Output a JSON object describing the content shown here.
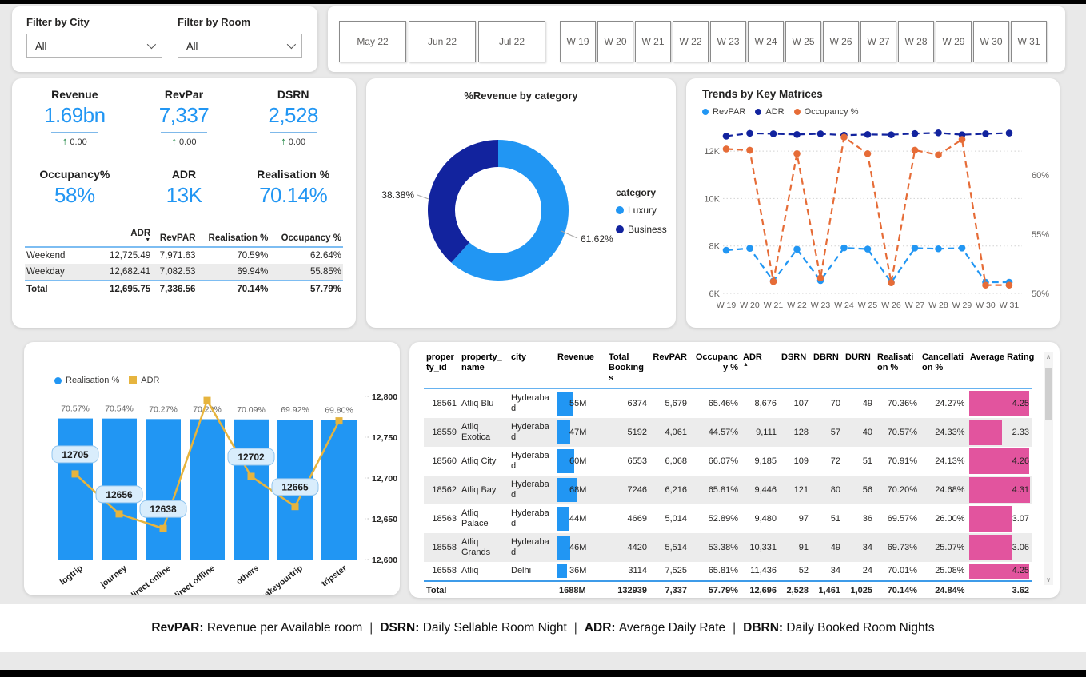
{
  "colors": {
    "blue": "#2196F3",
    "navy": "#12239E",
    "orange": "#E66C37",
    "gold": "#E6B43E",
    "pink": "#E2549E",
    "green": "#17823D"
  },
  "filters": {
    "city": {
      "label": "Filter by City",
      "value": "All"
    },
    "room": {
      "label": "Filter by Room",
      "value": "All"
    }
  },
  "slicers": {
    "months": [
      "May 22",
      "Jun 22",
      "Jul 22"
    ],
    "weeks": [
      "W 19",
      "W 20",
      "W 21",
      "W 22",
      "W 23",
      "W 24",
      "W 25",
      "W 26",
      "W 27",
      "W 28",
      "W 29",
      "W 30",
      "W 31"
    ]
  },
  "kpis": [
    {
      "label": "Revenue",
      "value": "1.69bn",
      "delta": "0.00"
    },
    {
      "label": "RevPar",
      "value": "7,337",
      "delta": "0.00"
    },
    {
      "label": "DSRN",
      "value": "2,528",
      "delta": "0.00"
    },
    {
      "label": "Occupancy%",
      "value": "58%"
    },
    {
      "label": "ADR",
      "value": "13K"
    },
    {
      "label": "Realisation %",
      "value": "70.14%"
    }
  ],
  "kpi_breakdown_table": {
    "columns": [
      "",
      "ADR",
      "RevPAR",
      "Realisation %",
      "Occupancy %"
    ],
    "sort": {
      "column": "ADR",
      "direction": "desc"
    },
    "rows": [
      [
        "Weekend",
        "12,725.49",
        "7,971.63",
        "70.59%",
        "62.64%"
      ],
      [
        "Weekday",
        "12,682.41",
        "7,082.53",
        "69.94%",
        "55.85%"
      ]
    ],
    "total": [
      "Total",
      "12,695.75",
      "7,336.56",
      "70.14%",
      "57.79%"
    ]
  },
  "chart_data": [
    {
      "id": "revenue_by_category",
      "type": "pie",
      "title": "%Revenue by category",
      "legend_title": "category",
      "legend_position": "right",
      "labels": [
        "Luxury",
        "Business"
      ],
      "values": [
        61.62,
        38.38
      ],
      "value_labels": [
        "61.62%",
        "38.38%"
      ],
      "colors": [
        "#2196F3",
        "#12239E"
      ],
      "donut": true
    },
    {
      "id": "trends_by_key_matrices",
      "type": "line",
      "title": "Trends by Key Matrices",
      "line_style": "dashed",
      "grid": true,
      "legend_position": "top",
      "categories": [
        "W 19",
        "W 20",
        "W 21",
        "W 22",
        "W 23",
        "W 24",
        "W 25",
        "W 26",
        "W 27",
        "W 28",
        "W 29",
        "W 30",
        "W 31"
      ],
      "series": [
        {
          "name": "RevPAR",
          "axis": "left",
          "color": "#2196F3",
          "values": [
            7820,
            7900,
            6520,
            7860,
            6540,
            7920,
            7870,
            6460,
            7910,
            7880,
            7910,
            6470,
            6470
          ]
        },
        {
          "name": "ADR",
          "axis": "left",
          "color": "#12239E",
          "values": [
            12630,
            12750,
            12730,
            12700,
            12730,
            12670,
            12700,
            12690,
            12740,
            12770,
            12690,
            12730,
            12760
          ]
        },
        {
          "name": "Occupancy %",
          "axis": "right",
          "color": "#E66C37",
          "values": [
            62.2,
            62.1,
            51.0,
            61.8,
            51.3,
            63.2,
            61.8,
            50.9,
            62.1,
            61.7,
            63.0,
            50.7,
            50.7
          ]
        }
      ],
      "left_axis": {
        "ticks": [
          "6K",
          "8K",
          "10K",
          "12K"
        ],
        "tick_values": [
          6000,
          8000,
          10000,
          12000
        ],
        "min": 6000,
        "max": 13400
      },
      "right_axis": {
        "ticks": [
          "50%",
          "55%",
          "60%"
        ],
        "tick_values": [
          50,
          55,
          60
        ],
        "min": 50,
        "max": 63.7
      }
    },
    {
      "id": "realisation_and_adr_by_platform",
      "type": "bar",
      "legend_position": "top",
      "categories": [
        "logtrip",
        "journey",
        "direct online",
        "direct offline",
        "others",
        "makeyourtrip",
        "tripster"
      ],
      "series": [
        {
          "name": "Realisation %",
          "type": "bar",
          "color": "#2196F3",
          "values": [
            70.57,
            70.54,
            70.27,
            70.2,
            70.09,
            69.92,
            69.8
          ],
          "labels": [
            "70.57%",
            "70.54%",
            "70.27%",
            "70.20%",
            "70.09%",
            "69.92%",
            "69.80%"
          ]
        },
        {
          "name": "ADR",
          "type": "line",
          "color": "#E6B43E",
          "values": [
            12705,
            12656,
            12638,
            12795,
            12702,
            12665,
            12770
          ],
          "labels": [
            "12705",
            "12656",
            "12638",
            null,
            "12702",
            "12665",
            null
          ]
        }
      ],
      "right_axis": {
        "ticks": [
          "12,600",
          "12,650",
          "12,700",
          "12,750",
          "12,800"
        ],
        "tick_values": [
          12600,
          12650,
          12700,
          12750,
          12800
        ],
        "min": 12600,
        "max": 12800
      }
    }
  ],
  "property_table": {
    "columns": [
      "property_id",
      "property_name",
      "city",
      "Revenue",
      "Total Bookings",
      "RevPAR",
      "Occupancy %",
      "ADR",
      "DSRN",
      "DBRN",
      "DURN",
      "Realisation %",
      "Cancellation %",
      "Average Rating"
    ],
    "sort": {
      "column": "ADR",
      "direction": "asc"
    },
    "rows": [
      [
        "18561",
        "Atliq Blu",
        "Hyderabad",
        "55M",
        "6374",
        "5,679",
        "65.46%",
        "8,676",
        "107",
        "70",
        "49",
        "70.36%",
        "24.27%",
        "4.25"
      ],
      [
        "18559",
        "Atliq Exotica",
        "Hyderabad",
        "47M",
        "5192",
        "4,061",
        "44.57%",
        "9,111",
        "128",
        "57",
        "40",
        "70.57%",
        "24.33%",
        "2.33"
      ],
      [
        "18560",
        "Atliq City",
        "Hyderabad",
        "60M",
        "6553",
        "6,068",
        "66.07%",
        "9,185",
        "109",
        "72",
        "51",
        "70.91%",
        "24.13%",
        "4.26"
      ],
      [
        "18562",
        "Atliq Bay",
        "Hyderabad",
        "68M",
        "7246",
        "6,216",
        "65.81%",
        "9,446",
        "121",
        "80",
        "56",
        "70.20%",
        "24.68%",
        "4.31"
      ],
      [
        "18563",
        "Atliq Palace",
        "Hyderabad",
        "44M",
        "4669",
        "5,014",
        "52.89%",
        "9,480",
        "97",
        "51",
        "36",
        "69.57%",
        "26.00%",
        "3.07"
      ],
      [
        "18558",
        "Atliq Grands",
        "Hyderabad",
        "46M",
        "4420",
        "5,514",
        "53.38%",
        "10,331",
        "91",
        "49",
        "34",
        "69.73%",
        "25.07%",
        "3.06"
      ],
      [
        "16558",
        "Atliq",
        "Delhi",
        "36M",
        "3114",
        "7,525",
        "65.81%",
        "11,436",
        "52",
        "34",
        "24",
        "70.01%",
        "25.08%",
        "4.25"
      ]
    ],
    "total_row": [
      "Total",
      "",
      "",
      "1688M",
      "132939",
      "7,337",
      "57.79%",
      "12,696",
      "2,528",
      "1,461",
      "1,025",
      "70.14%",
      "24.84%",
      "3.62"
    ]
  },
  "footer": {
    "separator": "|",
    "items": [
      {
        "term": "RevPAR:",
        "definition": "Revenue per Available room"
      },
      {
        "term": "DSRN:",
        "definition": "Daily Sellable Room Night"
      },
      {
        "term": "ADR:",
        "definition": "Average Daily Rate"
      },
      {
        "term": "DBRN:",
        "definition": "Daily Booked Room Nights"
      }
    ]
  }
}
